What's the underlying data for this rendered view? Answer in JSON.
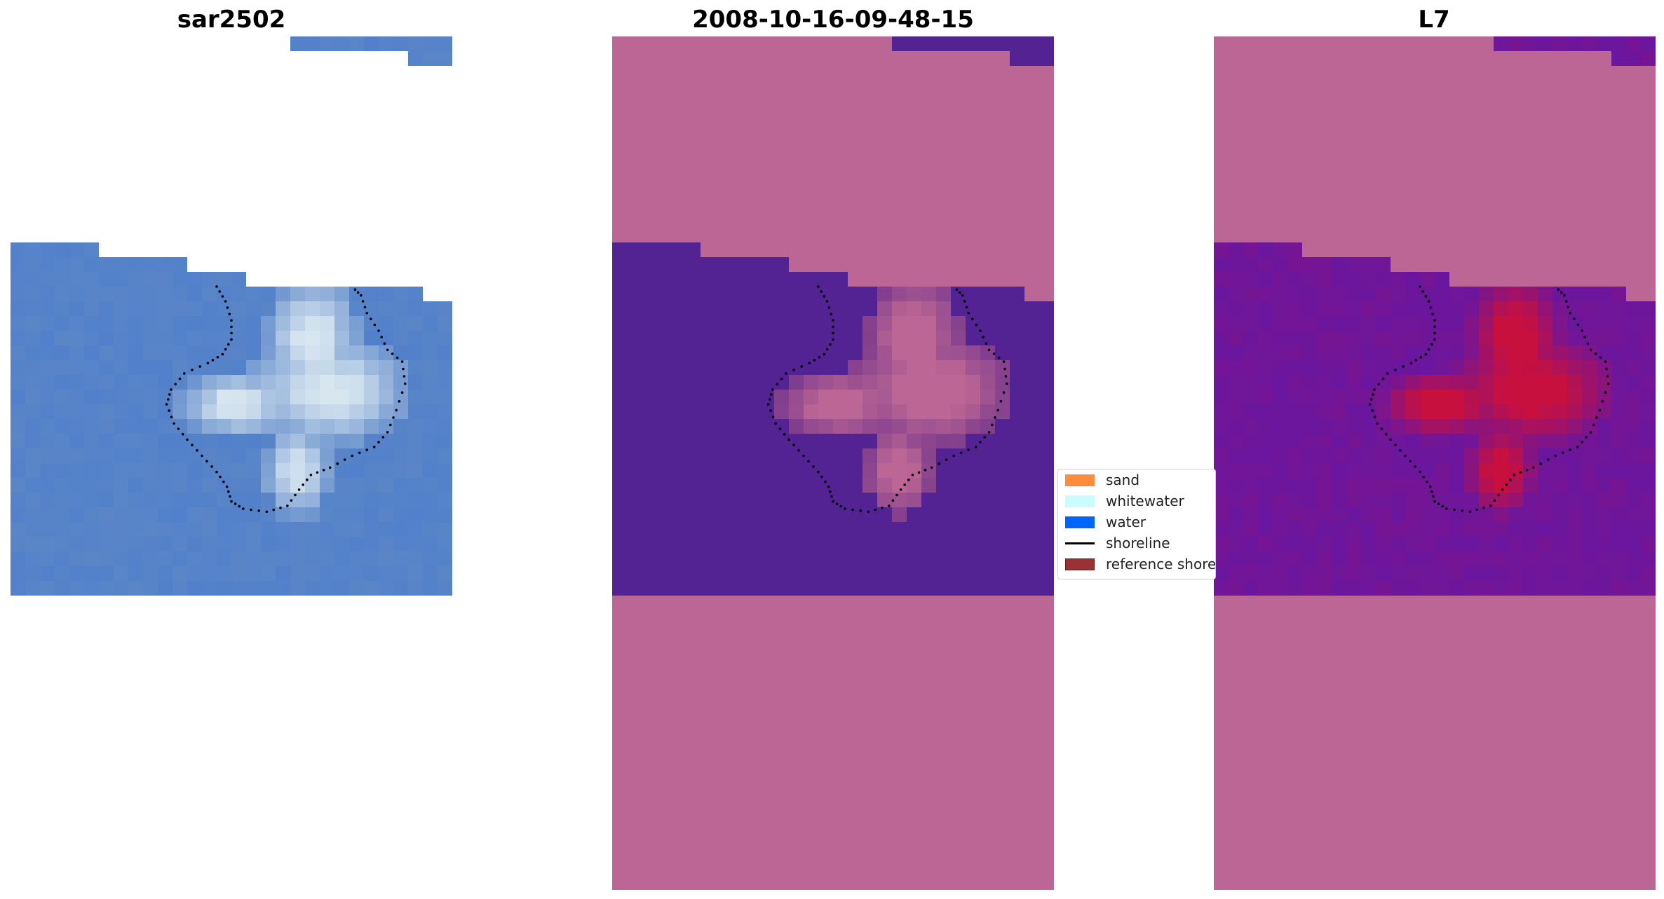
{
  "panels": [
    {
      "title": "sar2502"
    },
    {
      "title": "2008-10-16-09-48-15"
    },
    {
      "title": "L7"
    }
  ],
  "legend": {
    "items": [
      {
        "label": "sand",
        "color": "#ff8c3c",
        "kind": "patch"
      },
      {
        "label": "whitewater",
        "color": "#c8fcff",
        "kind": "patch"
      },
      {
        "label": "water",
        "color": "#0064ff",
        "kind": "patch"
      },
      {
        "label": "shoreline",
        "color": "#000000",
        "kind": "line"
      },
      {
        "label": "reference shoreline",
        "color": "#993333",
        "kind": "patch"
      }
    ]
  },
  "colors": {
    "rgb_water": "#5a86c8",
    "rgb_whitewater": "#d8e6f0",
    "class_water": "#532293",
    "class_nodata": "#bb6694",
    "index_low": "#6a169f",
    "index_high": "#c8103e",
    "shoreline": "#000000"
  }
}
